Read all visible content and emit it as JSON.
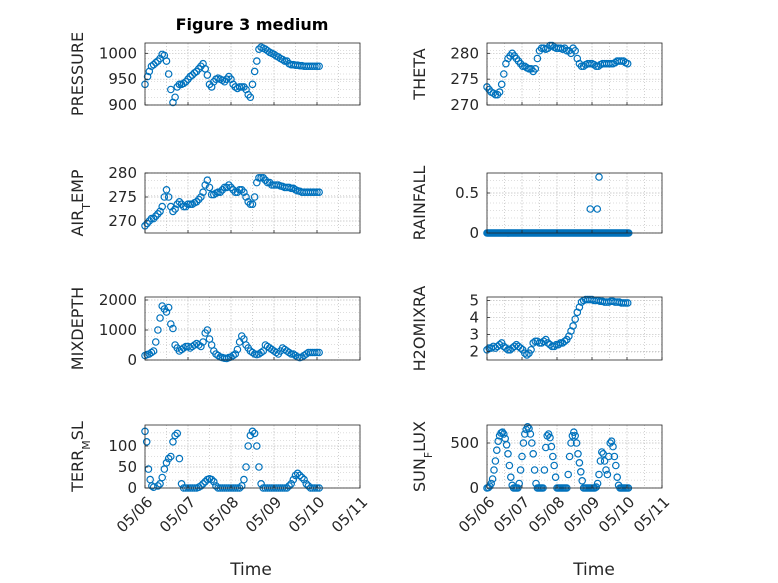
{
  "figure": {
    "title": "Figure 3 medium",
    "xlabel": "Time"
  },
  "colors": {
    "marker": "#0072BD",
    "axis": "#262626",
    "grid": "#bdbdbd"
  },
  "x_ticks": [
    "05/06",
    "05/07",
    "05/08",
    "05/09",
    "05/10",
    "05/11"
  ],
  "chart_data": [
    {
      "id": "pressure",
      "type": "scatter",
      "ylabel": "PRESSURE",
      "ylim": [
        900,
        1020
      ],
      "yticks": [
        900,
        950,
        1000
      ],
      "xlim": [
        "05/06",
        "05/11"
      ],
      "grid": true,
      "x": [
        0,
        0.06,
        0.1,
        0.15,
        0.2,
        0.25,
        0.3,
        0.35,
        0.4,
        0.45,
        0.5,
        0.55,
        0.6,
        0.65,
        0.7,
        0.75,
        0.8,
        0.85,
        0.9,
        0.95,
        1.0,
        1.05,
        1.1,
        1.15,
        1.2,
        1.25,
        1.3,
        1.35,
        1.4,
        1.45,
        1.5,
        1.55,
        1.6,
        1.65,
        1.7,
        1.75,
        1.8,
        1.85,
        1.9,
        1.95,
        2.0,
        2.05,
        2.1,
        2.15,
        2.2,
        2.25,
        2.3,
        2.35,
        2.4,
        2.45,
        2.5,
        2.55,
        2.6,
        2.65,
        2.7,
        2.75,
        2.8,
        2.85,
        2.9,
        2.95,
        3.0,
        3.05,
        3.1,
        3.15,
        3.2,
        3.25,
        3.3,
        3.35,
        3.4,
        3.45,
        3.5,
        3.55,
        3.6,
        3.65,
        3.7,
        3.75,
        3.8,
        3.85,
        3.9,
        3.95,
        4.0,
        4.05
      ],
      "y": [
        940,
        955,
        965,
        975,
        978,
        982,
        985,
        990,
        998,
        996,
        985,
        960,
        930,
        905,
        915,
        935,
        940,
        940,
        942,
        945,
        950,
        955,
        958,
        962,
        965,
        970,
        975,
        980,
        970,
        958,
        940,
        935,
        945,
        950,
        952,
        950,
        948,
        945,
        950,
        955,
        950,
        940,
        935,
        932,
        935,
        935,
        935,
        930,
        920,
        915,
        940,
        965,
        985,
        1008,
        1012,
        1010,
        1008,
        1005,
        1002,
        1000,
        998,
        995,
        993,
        990,
        988,
        985,
        985,
        980,
        978,
        978,
        977,
        977,
        976,
        976,
        975,
        975,
        975,
        975,
        975,
        975,
        975,
        975
      ]
    },
    {
      "id": "theta",
      "type": "scatter",
      "ylabel": "THETA",
      "ylim": [
        270,
        282
      ],
      "yticks": [
        270,
        275,
        280
      ],
      "xlim": [
        "05/06",
        "05/11"
      ],
      "grid": true,
      "x": [
        0,
        0.06,
        0.12,
        0.18,
        0.24,
        0.3,
        0.36,
        0.42,
        0.48,
        0.54,
        0.6,
        0.66,
        0.72,
        0.78,
        0.84,
        0.9,
        0.96,
        1.02,
        1.08,
        1.14,
        1.2,
        1.26,
        1.32,
        1.38,
        1.44,
        1.5,
        1.56,
        1.62,
        1.68,
        1.74,
        1.8,
        1.86,
        1.92,
        1.98,
        2.04,
        2.1,
        2.16,
        2.22,
        2.28,
        2.34,
        2.4,
        2.46,
        2.52,
        2.58,
        2.64,
        2.7,
        2.76,
        2.82,
        2.88,
        2.94,
        3.0,
        3.06,
        3.12,
        3.18,
        3.24,
        3.3,
        3.36,
        3.42,
        3.48,
        3.54,
        3.6,
        3.66,
        3.72,
        3.78,
        3.84,
        3.9,
        3.96,
        4.02
      ],
      "y": [
        273.5,
        273,
        272.5,
        272.3,
        272,
        272,
        272.5,
        274,
        276,
        278,
        279,
        279.5,
        280,
        279.5,
        279,
        278.5,
        278,
        277.5,
        277.5,
        277.2,
        277,
        277,
        276.5,
        277,
        279,
        280.5,
        281,
        281,
        280.8,
        281,
        281.5,
        281.5,
        281.2,
        281,
        281,
        281,
        280.8,
        281,
        280.5,
        280.5,
        280,
        281,
        280.5,
        279,
        278,
        277.5,
        277.5,
        277.8,
        278,
        278,
        278,
        277.8,
        277.5,
        277.5,
        277.8,
        278,
        278,
        278,
        278,
        278,
        278,
        278.2,
        278.5,
        278.5,
        278.5,
        278.5,
        278.2,
        278
      ]
    },
    {
      "id": "air_temp",
      "type": "scatter",
      "ylabel_main": "AIR",
      "ylabel_sub": "T",
      "ylabel_tail": "EMP",
      "ylim": [
        267.5,
        280
      ],
      "yticks": [
        270,
        275,
        280
      ],
      "xlim": [
        "05/06",
        "05/11"
      ],
      "grid": true,
      "x": [
        0,
        0.05,
        0.1,
        0.15,
        0.2,
        0.25,
        0.3,
        0.35,
        0.4,
        0.45,
        0.5,
        0.55,
        0.6,
        0.65,
        0.7,
        0.75,
        0.8,
        0.85,
        0.9,
        0.95,
        1.0,
        1.05,
        1.1,
        1.15,
        1.2,
        1.25,
        1.3,
        1.35,
        1.4,
        1.45,
        1.5,
        1.55,
        1.6,
        1.65,
        1.7,
        1.75,
        1.8,
        1.85,
        1.9,
        1.95,
        2.0,
        2.05,
        2.1,
        2.15,
        2.2,
        2.25,
        2.3,
        2.35,
        2.4,
        2.45,
        2.5,
        2.55,
        2.6,
        2.65,
        2.7,
        2.75,
        2.8,
        2.85,
        2.9,
        2.95,
        3.0,
        3.05,
        3.1,
        3.15,
        3.2,
        3.25,
        3.3,
        3.35,
        3.4,
        3.45,
        3.5,
        3.55,
        3.6,
        3.65,
        3.7,
        3.75,
        3.8,
        3.85,
        3.9,
        3.95,
        4.0,
        4.05
      ],
      "y": [
        269,
        269.5,
        270,
        270.5,
        270.5,
        271,
        271.5,
        272,
        273,
        275,
        276.5,
        275,
        273,
        272,
        272.5,
        273.5,
        274,
        273.5,
        273,
        273,
        273.5,
        273.5,
        273.5,
        273.8,
        274,
        274.5,
        275,
        276,
        277.5,
        278.5,
        277,
        275.5,
        275.5,
        275.8,
        276,
        276,
        276.5,
        277,
        277,
        277.5,
        277,
        276.5,
        276,
        276,
        276.5,
        276.5,
        276,
        275,
        274,
        273.5,
        273.5,
        275,
        278,
        279,
        279,
        279,
        278.5,
        278,
        278,
        277.5,
        277.5,
        277.5,
        277.5,
        277.3,
        277.2,
        277,
        277,
        277,
        276.8,
        276.8,
        276.5,
        276.3,
        276.2,
        276,
        276,
        276,
        276,
        276,
        276,
        276,
        276,
        276
      ]
    },
    {
      "id": "rainfall",
      "type": "scatter",
      "ylabel": "RAINFALL",
      "ylim": [
        0,
        0.75
      ],
      "yticks": [
        0,
        0.5
      ],
      "xlim": [
        "05/06",
        "05/11"
      ],
      "grid": true,
      "x_zero_range": [
        0,
        4.05
      ],
      "spikes": [
        {
          "x": 2.95,
          "y": 0.3
        },
        {
          "x": 3.15,
          "y": 0.3
        },
        {
          "x": 3.2,
          "y": 0.7
        }
      ]
    },
    {
      "id": "mixdepth",
      "type": "scatter",
      "ylabel": "MIXDEPTH",
      "ylim": [
        0,
        2100
      ],
      "yticks": [
        0,
        1000,
        2000
      ],
      "xlim": [
        "05/06",
        "05/11"
      ],
      "grid": true,
      "x": [
        0,
        0.05,
        0.1,
        0.15,
        0.2,
        0.25,
        0.3,
        0.35,
        0.4,
        0.45,
        0.5,
        0.55,
        0.6,
        0.65,
        0.7,
        0.75,
        0.8,
        0.85,
        0.9,
        0.95,
        1.0,
        1.05,
        1.1,
        1.15,
        1.2,
        1.25,
        1.3,
        1.35,
        1.4,
        1.45,
        1.5,
        1.55,
        1.6,
        1.65,
        1.7,
        1.75,
        1.8,
        1.85,
        1.9,
        1.95,
        2.0,
        2.05,
        2.1,
        2.15,
        2.2,
        2.25,
        2.3,
        2.35,
        2.4,
        2.45,
        2.5,
        2.55,
        2.6,
        2.65,
        2.7,
        2.75,
        2.8,
        2.85,
        2.9,
        2.95,
        3.0,
        3.05,
        3.1,
        3.15,
        3.2,
        3.25,
        3.3,
        3.35,
        3.4,
        3.45,
        3.5,
        3.55,
        3.6,
        3.65,
        3.7,
        3.75,
        3.8,
        3.85,
        3.9,
        3.95,
        4.0,
        4.05
      ],
      "y": [
        150,
        180,
        200,
        250,
        300,
        600,
        1000,
        1400,
        1800,
        1700,
        1600,
        1750,
        1200,
        1050,
        500,
        400,
        300,
        350,
        400,
        450,
        450,
        400,
        450,
        500,
        550,
        500,
        450,
        600,
        900,
        1000,
        700,
        500,
        300,
        200,
        150,
        100,
        80,
        60,
        50,
        80,
        100,
        150,
        200,
        350,
        600,
        800,
        700,
        500,
        400,
        300,
        250,
        200,
        180,
        200,
        250,
        300,
        500,
        450,
        400,
        350,
        300,
        250,
        200,
        300,
        400,
        350,
        300,
        250,
        200,
        200,
        150,
        100,
        80,
        100,
        150,
        200,
        250,
        250,
        250,
        250,
        250,
        250
      ]
    },
    {
      "id": "h2omixra",
      "type": "scatter",
      "ylabel": "H2OMIXRA",
      "ylim": [
        1.5,
        5.2
      ],
      "yticks": [
        2,
        3,
        4,
        5
      ],
      "xlim": [
        "05/06",
        "05/11"
      ],
      "grid": true,
      "x": [
        0,
        0.06,
        0.12,
        0.18,
        0.24,
        0.3,
        0.36,
        0.42,
        0.48,
        0.54,
        0.6,
        0.66,
        0.72,
        0.78,
        0.84,
        0.9,
        0.96,
        1.02,
        1.08,
        1.14,
        1.2,
        1.26,
        1.32,
        1.38,
        1.44,
        1.5,
        1.56,
        1.62,
        1.68,
        1.74,
        1.8,
        1.86,
        1.92,
        1.98,
        2.04,
        2.1,
        2.16,
        2.22,
        2.28,
        2.34,
        2.4,
        2.46,
        2.52,
        2.58,
        2.64,
        2.7,
        2.76,
        2.82,
        2.88,
        2.94,
        3.0,
        3.06,
        3.12,
        3.18,
        3.24,
        3.3,
        3.36,
        3.42,
        3.48,
        3.54,
        3.6,
        3.66,
        3.72,
        3.78,
        3.84,
        3.9,
        3.96,
        4.02
      ],
      "y": [
        2.1,
        2.2,
        2.2,
        2.3,
        2.2,
        2.3,
        2.4,
        2.5,
        2.3,
        2.2,
        2.1,
        2.1,
        2.2,
        2.3,
        2.4,
        2.3,
        2.2,
        2.1,
        1.9,
        1.8,
        1.9,
        2.1,
        2.5,
        2.6,
        2.6,
        2.5,
        2.5,
        2.6,
        2.7,
        2.5,
        2.4,
        2.3,
        2.3,
        2.4,
        2.4,
        2.5,
        2.5,
        2.6,
        2.7,
        2.9,
        3.2,
        3.5,
        3.9,
        4.3,
        4.6,
        4.9,
        5.0,
        5.05,
        5.05,
        5.05,
        5.05,
        5.0,
        5.0,
        5.0,
        4.95,
        4.95,
        4.9,
        4.9,
        4.9,
        4.95,
        4.95,
        4.9,
        4.9,
        4.9,
        4.85,
        4.85,
        4.85,
        4.85
      ]
    },
    {
      "id": "terr_msl",
      "type": "scatter",
      "ylabel_main": "TERR",
      "ylabel_sub": "M",
      "ylabel_tail": "SL",
      "ylim": [
        0,
        150
      ],
      "yticks": [
        0,
        50,
        100
      ],
      "xlim": [
        "05/06",
        "05/11"
      ],
      "grid": true,
      "x": [
        0,
        0.04,
        0.08,
        0.12,
        0.16,
        0.2,
        0.3,
        0.35,
        0.4,
        0.45,
        0.5,
        0.55,
        0.6,
        0.65,
        0.7,
        0.75,
        0.8,
        0.85,
        0.9,
        0.95,
        1.0,
        1.05,
        1.1,
        1.15,
        1.2,
        1.25,
        1.3,
        1.35,
        1.4,
        1.45,
        1.5,
        1.55,
        1.6,
        1.65,
        1.7,
        1.75,
        1.8,
        1.85,
        1.9,
        1.95,
        2.0,
        2.05,
        2.1,
        2.15,
        2.2,
        2.25,
        2.3,
        2.35,
        2.4,
        2.45,
        2.5,
        2.55,
        2.6,
        2.65,
        2.7,
        2.75,
        2.8,
        2.85,
        2.9,
        2.95,
        3.0,
        3.05,
        3.1,
        3.15,
        3.2,
        3.25,
        3.3,
        3.35,
        3.4,
        3.45,
        3.5,
        3.55,
        3.6,
        3.65,
        3.7,
        3.75,
        3.8,
        3.85,
        3.9,
        3.95,
        4.0,
        4.05
      ],
      "y": [
        135,
        110,
        45,
        20,
        5,
        2,
        5,
        10,
        25,
        45,
        60,
        70,
        75,
        110,
        125,
        130,
        70,
        10,
        0,
        0,
        0,
        0,
        0,
        0,
        0,
        2,
        5,
        10,
        15,
        20,
        22,
        20,
        15,
        5,
        0,
        0,
        0,
        0,
        0,
        0,
        0,
        0,
        0,
        0,
        0,
        5,
        20,
        50,
        100,
        125,
        135,
        130,
        100,
        50,
        10,
        0,
        0,
        0,
        0,
        0,
        0,
        0,
        0,
        0,
        0,
        0,
        0,
        5,
        10,
        20,
        30,
        35,
        30,
        25,
        20,
        10,
        5,
        0,
        0,
        0,
        0,
        0
      ]
    },
    {
      "id": "sun_flux",
      "type": "scatter",
      "ylabel_main": "SUN",
      "ylabel_sub": "F",
      "ylabel_tail": "LUX",
      "ylim": [
        0,
        700
      ],
      "yticks": [
        0,
        500
      ],
      "xlim": [
        "05/06",
        "05/11"
      ],
      "grid": true,
      "x": [
        0,
        0.04,
        0.08,
        0.12,
        0.16,
        0.2,
        0.24,
        0.28,
        0.32,
        0.36,
        0.4,
        0.44,
        0.48,
        0.52,
        0.56,
        0.6,
        0.64,
        0.68,
        0.72,
        0.76,
        0.8,
        0.84,
        0.88,
        0.92,
        0.96,
        1.0,
        1.04,
        1.08,
        1.12,
        1.16,
        1.2,
        1.24,
        1.28,
        1.32,
        1.36,
        1.4,
        1.44,
        1.48,
        1.52,
        1.56,
        1.6,
        1.64,
        1.68,
        1.72,
        1.76,
        1.8,
        1.84,
        1.88,
        1.92,
        1.96,
        2.0,
        2.04,
        2.08,
        2.12,
        2.16,
        2.2,
        2.24,
        2.28,
        2.32,
        2.36,
        2.4,
        2.44,
        2.48,
        2.52,
        2.56,
        2.6,
        2.64,
        2.68,
        2.72,
        2.76,
        2.8,
        2.84,
        2.88,
        2.92,
        2.96,
        3.0,
        3.04,
        3.08,
        3.12,
        3.16,
        3.2,
        3.24,
        3.28,
        3.32,
        3.36,
        3.4,
        3.44,
        3.48,
        3.52,
        3.56,
        3.6,
        3.64,
        3.68,
        3.72,
        3.76,
        3.8,
        3.84,
        3.88,
        3.92,
        3.96,
        4.0,
        4.04
      ],
      "y": [
        0,
        5,
        20,
        50,
        100,
        200,
        300,
        420,
        520,
        580,
        610,
        620,
        600,
        550,
        480,
        380,
        250,
        120,
        30,
        0,
        0,
        0,
        0,
        50,
        200,
        350,
        500,
        600,
        650,
        680,
        660,
        600,
        500,
        380,
        200,
        50,
        0,
        0,
        0,
        0,
        0,
        200,
        450,
        580,
        600,
        560,
        460,
        350,
        250,
        120,
        0,
        0,
        0,
        0,
        0,
        0,
        0,
        0,
        150,
        350,
        500,
        580,
        620,
        580,
        500,
        380,
        280,
        180,
        80,
        0,
        0,
        0,
        0,
        0,
        0,
        0,
        0,
        0,
        10,
        50,
        150,
        300,
        400,
        380,
        300,
        200,
        150,
        350,
        500,
        520,
        460,
        350,
        250,
        120,
        30,
        0,
        0,
        0,
        0,
        0,
        0,
        0
      ]
    }
  ]
}
